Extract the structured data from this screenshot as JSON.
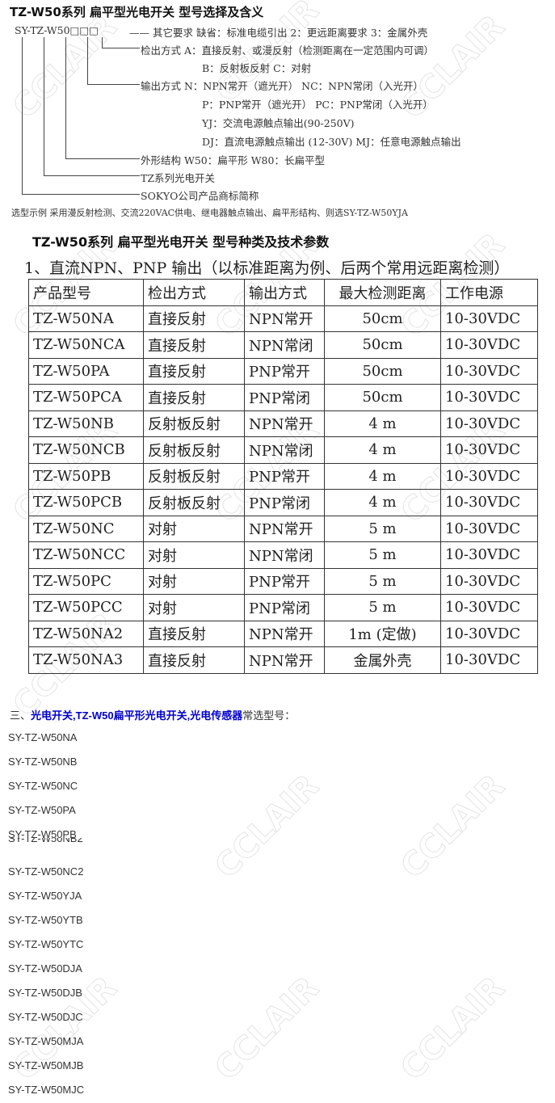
{
  "title": "TZ-W50系列 扁平型光电开关  型号选择及含义",
  "code": "SY-TZ-W50□□□",
  "diagram": [
    "—— 其它要求  缺省：标准电缆引出    2：更远距离要求    3：金属外壳",
    "检出方式  A：直接反射、或漫反射（检测距离在一定范围内可调）",
    "B：反射板反射          C：对射",
    "输出方式  N：NPN常开（遮光开）   NC：NPN常闭（入光开）",
    "P：PNP常开（遮光开）   PC：PNP常闭（入光开）",
    "YJ：交流电源触点输出(90-250V)",
    "DJ：直流电源触点输出 (12-30V)   MJ：任意电源触点输出",
    "外形结构  W50：扁平形     W80：长扁平型",
    "TZ系列光电开关",
    "SOKYO公司产品商标简称"
  ],
  "example": "选型示例    采用漫反射检测、交流220VAC供电、继电器触点输出、扁平形结构、则选SY-TZ-W50YJA",
  "title2": "TZ-W50系列 扁平型光电开关  型号种类及技术参数",
  "subtitle2": "1、直流NPN、PNP 输出（以标准距离为例、后两个常用远距离检测）",
  "table": {
    "headers": [
      "产品型号",
      "检出方式",
      "输出方式",
      "最大检测距离",
      "工作电源"
    ],
    "rows": [
      [
        "TZ-W50NA",
        "直接反射",
        "NPN常开",
        "50cm",
        "10-30VDC"
      ],
      [
        "TZ-W50NCA",
        "直接反射",
        "NPN常闭",
        "50cm",
        "10-30VDC"
      ],
      [
        "TZ-W50PA",
        "直接反射",
        "PNP常开",
        "50cm",
        "10-30VDC"
      ],
      [
        "TZ-W50PCA",
        "直接反射",
        "PNP常闭",
        "50cm",
        "10-30VDC"
      ],
      [
        "TZ-W50NB",
        "反射板反射",
        "NPN常开",
        "4 m",
        "10-30VDC"
      ],
      [
        "TZ-W50NCB",
        "反射板反射",
        "NPN常闭",
        "4 m",
        "10-30VDC"
      ],
      [
        "TZ-W50PB",
        "反射板反射",
        "PNP常开",
        "4 m",
        "10-30VDC"
      ],
      [
        "TZ-W50PCB",
        "反射板反射",
        "PNP常闭",
        "4 m",
        "10-30VDC"
      ],
      [
        "TZ-W50NC",
        "对射",
        "NPN常开",
        "5 m",
        "10-30VDC"
      ],
      [
        "TZ-W50NCC",
        "对射",
        "NPN常闭",
        "5 m",
        "10-30VDC"
      ],
      [
        "TZ-W50PC",
        "对射",
        "PNP常开",
        "5 m",
        "10-30VDC"
      ],
      [
        "TZ-W50PCC",
        "对射",
        "PNP常闭",
        "5 m",
        "10-30VDC"
      ],
      [
        "TZ-W50NA2",
        "直接反射",
        "NPN常开",
        "1m (定做)",
        "10-30VDC"
      ],
      [
        "TZ-W50NA3",
        "直接反射",
        "NPN常开",
        "金属外壳",
        "10-30VDC"
      ]
    ]
  },
  "section3": {
    "prefix": "三、",
    "link1": "光电开关",
    "link2": "TZ-W50扁平形光电开关",
    "link3": "光电传感器",
    "suffix": "常选型号：",
    "sep": ","
  },
  "models": [
    "SY-TZ-W50NA",
    "SY-TZ-W50NB",
    "SY-TZ-W50NC",
    "SY-TZ-W50PA",
    "SY-TZ-W50PB",
    "SY-TZ-W50NB2",
    "SY-TZ-W50NC2",
    "SY-TZ-W50YJA",
    "SY-TZ-W50YTB",
    "SY-TZ-W50YTC",
    "SY-TZ-W50DJA",
    "SY-TZ-W50DJB",
    "SY-TZ-W50DJC",
    "SY-TZ-W50MJA",
    "SY-TZ-W50MJB",
    "SY-TZ-W50MJC"
  ],
  "watermark": "CCLAIR",
  "link_color": "#0000cc"
}
